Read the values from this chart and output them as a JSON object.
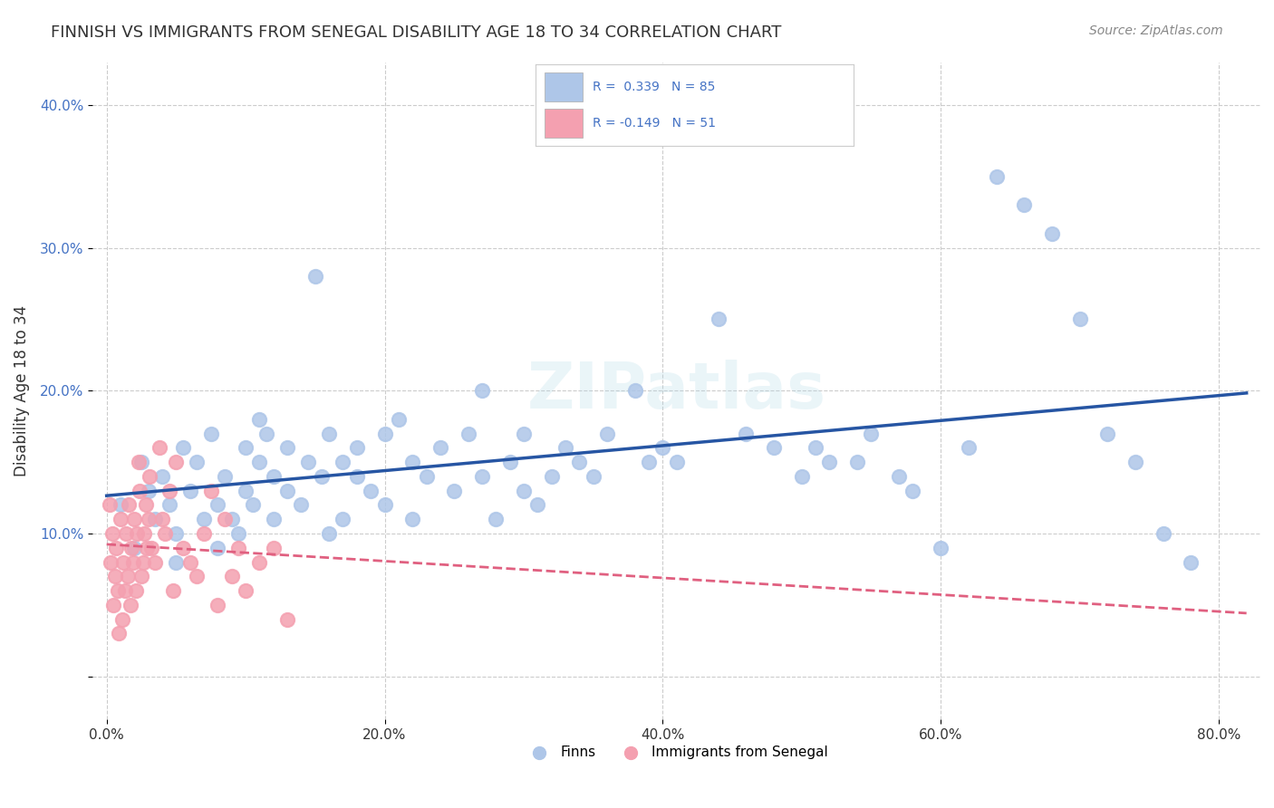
{
  "title": "FINNISH VS IMMIGRANTS FROM SENEGAL DISABILITY AGE 18 TO 34 CORRELATION CHART",
  "source": "Source: ZipAtlas.com",
  "xlabel_ticks": [
    "0.0%",
    "20.0%",
    "40.0%",
    "60.0%",
    "80.0%"
  ],
  "xlabel_tick_vals": [
    0,
    20,
    40,
    60,
    80
  ],
  "ylabel_ticks": [
    "",
    "10.0%",
    "20.0%",
    "30.0%",
    "40.0%"
  ],
  "ylabel_tick_vals": [
    0,
    10,
    20,
    30,
    40
  ],
  "xlim": [
    -1,
    83
  ],
  "ylim": [
    -3,
    43
  ],
  "finns_R": 0.339,
  "finns_N": 85,
  "senegal_R": -0.149,
  "senegal_N": 51,
  "legend_label_finns": "Finns",
  "legend_label_senegal": "Immigrants from Senegal",
  "finns_color": "#aec6e8",
  "finns_line_color": "#2655a3",
  "senegal_color": "#f4a0b0",
  "senegal_line_color": "#e06080",
  "background_color": "#ffffff",
  "watermark": "ZIPatlas",
  "finns_x": [
    1,
    2,
    2.5,
    3,
    3.5,
    4,
    4.5,
    5,
    5,
    5.5,
    6,
    6.5,
    7,
    7.5,
    8,
    8,
    8.5,
    9,
    9.5,
    10,
    10,
    10.5,
    11,
    11,
    11.5,
    12,
    12,
    13,
    13,
    14,
    14.5,
    15,
    15.5,
    16,
    16,
    17,
    17,
    18,
    18,
    19,
    20,
    20,
    21,
    22,
    22,
    23,
    24,
    25,
    26,
    27,
    27,
    28,
    29,
    30,
    30,
    31,
    32,
    33,
    34,
    35,
    36,
    38,
    39,
    40,
    41,
    44,
    46,
    48,
    50,
    51,
    52,
    54,
    55,
    57,
    58,
    60,
    62,
    64,
    66,
    68,
    70,
    72,
    74,
    76,
    78
  ],
  "finns_y": [
    12,
    9,
    15,
    13,
    11,
    14,
    12,
    10,
    8,
    16,
    13,
    15,
    11,
    17,
    12,
    9,
    14,
    11,
    10,
    16,
    13,
    12,
    15,
    18,
    17,
    14,
    11,
    16,
    13,
    12,
    15,
    28,
    14,
    17,
    10,
    11,
    15,
    14,
    16,
    13,
    17,
    12,
    18,
    15,
    11,
    14,
    16,
    13,
    17,
    20,
    14,
    11,
    15,
    13,
    17,
    12,
    14,
    16,
    15,
    14,
    17,
    20,
    15,
    16,
    15,
    25,
    17,
    16,
    14,
    16,
    15,
    15,
    17,
    14,
    13,
    9,
    16,
    35,
    33,
    31,
    25,
    17,
    15,
    10,
    8
  ],
  "senegal_x": [
    0.2,
    0.3,
    0.4,
    0.5,
    0.6,
    0.7,
    0.8,
    0.9,
    1.0,
    1.1,
    1.2,
    1.3,
    1.4,
    1.5,
    1.6,
    1.7,
    1.8,
    1.9,
    2.0,
    2.1,
    2.2,
    2.3,
    2.4,
    2.5,
    2.6,
    2.7,
    2.8,
    2.9,
    3.0,
    3.1,
    3.2,
    3.5,
    3.8,
    4.0,
    4.2,
    4.5,
    4.8,
    5.0,
    5.5,
    6.0,
    6.5,
    7.0,
    7.5,
    8.0,
    8.5,
    9.0,
    9.5,
    10.0,
    11.0,
    12.0,
    13.0
  ],
  "senegal_y": [
    12,
    8,
    10,
    5,
    7,
    9,
    6,
    3,
    11,
    4,
    8,
    6,
    10,
    7,
    12,
    5,
    9,
    8,
    11,
    6,
    10,
    15,
    13,
    7,
    8,
    10,
    12,
    9,
    11,
    14,
    9,
    8,
    16,
    11,
    10,
    13,
    6,
    15,
    9,
    8,
    7,
    10,
    13,
    5,
    11,
    7,
    9,
    6,
    8,
    9,
    4
  ]
}
